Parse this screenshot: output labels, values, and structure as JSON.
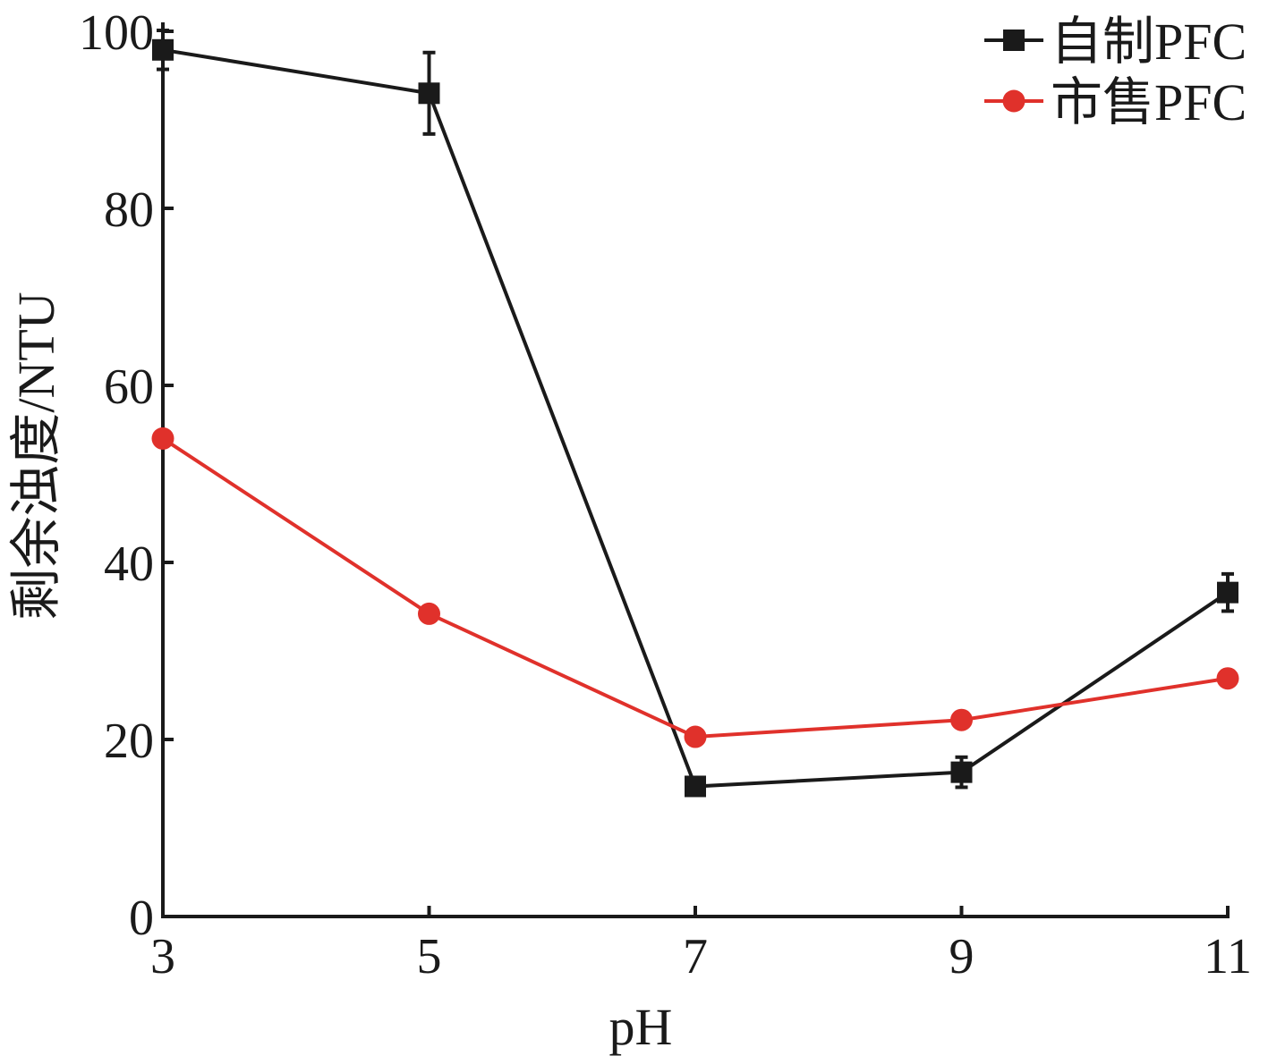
{
  "chart_data": {
    "type": "line",
    "title": "",
    "xlabel": "pH",
    "ylabel": "剩余浊度/NTU",
    "xlim": [
      3,
      11
    ],
    "ylim": [
      0,
      100
    ],
    "x": [
      3,
      5,
      7,
      9,
      11
    ],
    "x_ticks": [
      "3",
      "5",
      "7",
      "9",
      "11"
    ],
    "y_ticks": [
      "0",
      "20",
      "40",
      "60",
      "80",
      "100"
    ],
    "grid": false,
    "legend_position": "top-right",
    "series": [
      {
        "name": "自制PFC",
        "values": [
          97.9,
          93.0,
          14.7,
          16.3,
          36.6
        ],
        "errors": [
          2.2,
          4.6,
          0.5,
          1.7,
          2.1
        ],
        "marker": "square",
        "color": "#1a1a1a"
      },
      {
        "name": "市售PFC",
        "values": [
          54.0,
          34.2,
          20.3,
          22.2,
          26.9
        ],
        "marker": "circle",
        "color": "#e0312b"
      }
    ]
  }
}
